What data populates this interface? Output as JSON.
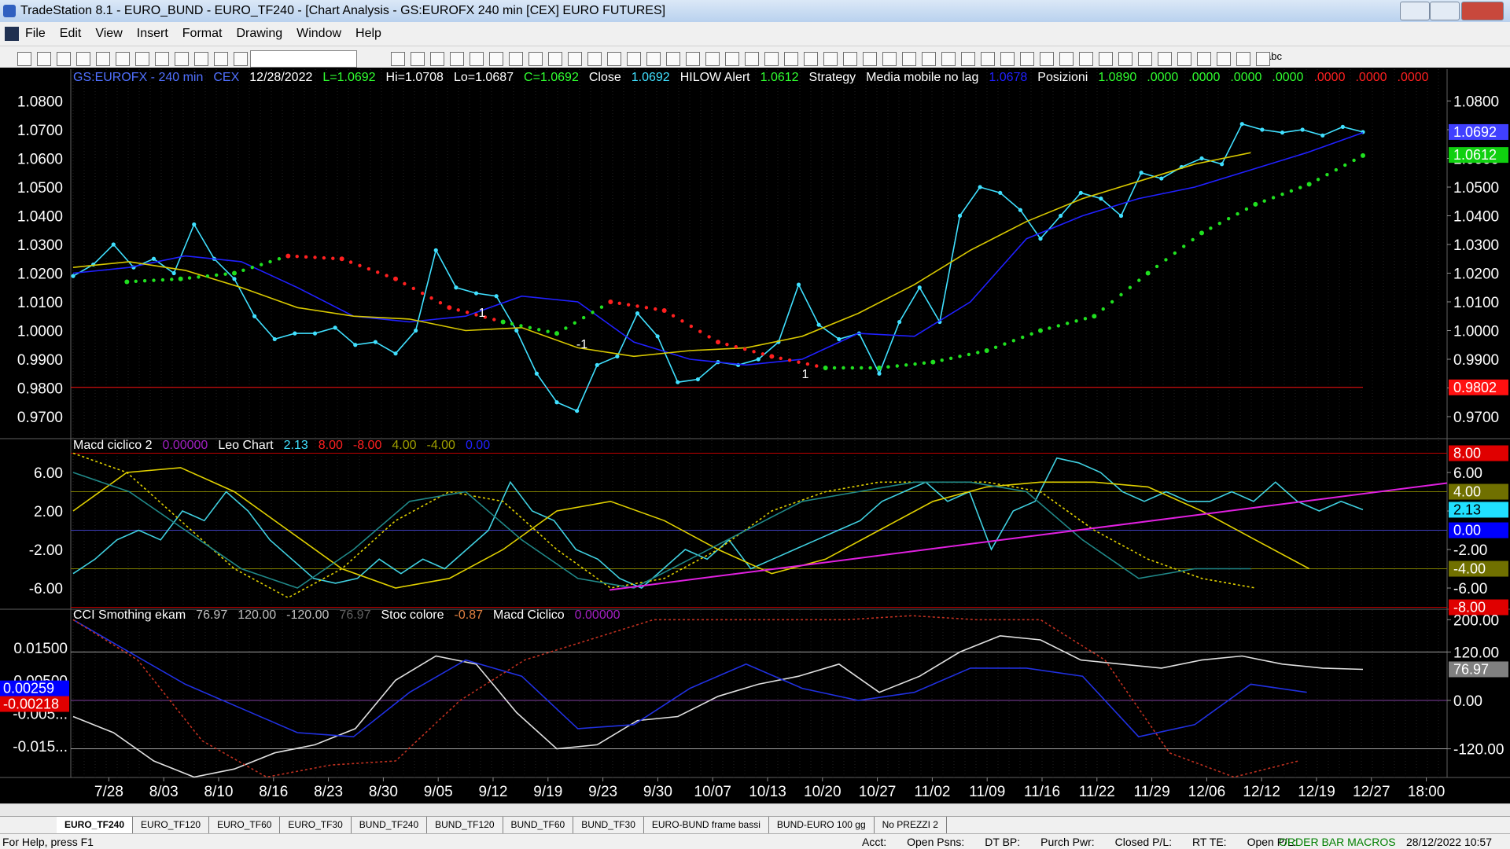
{
  "window": {
    "title": "TradeStation 8.1 - EURO_BUND - EURO_TF240 - [Chart Analysis - GS:EUROFX  240 min  [CEX] EURO FUTURES]"
  },
  "menu": [
    "File",
    "Edit",
    "View",
    "Insert",
    "Format",
    "Drawing",
    "Window",
    "Help"
  ],
  "toolbar": {
    "text_tool": "abc"
  },
  "price_panel": {
    "header": [
      {
        "text": "GS:EUROFX - 240 min",
        "color": "#5070ff"
      },
      {
        "text": "CEX",
        "color": "#5070ff"
      },
      {
        "text": "12/28/2022",
        "color": "#ffffff"
      },
      {
        "text": "L=1.0692",
        "color": "#30ff30"
      },
      {
        "text": "Hi=1.0708",
        "color": "#ffffff"
      },
      {
        "text": "Lo=1.0687",
        "color": "#ffffff"
      },
      {
        "text": "C=1.0692",
        "color": "#30ff30"
      },
      {
        "text": "Close",
        "color": "#ffffff"
      },
      {
        "text": "1.0692",
        "color": "#40e0ff"
      },
      {
        "text": "HILOW Alert",
        "color": "#ffffff"
      },
      {
        "text": "1.0612",
        "color": "#30ff30"
      },
      {
        "text": "Strategy",
        "color": "#ffffff"
      },
      {
        "text": "Media mobile no lag",
        "color": "#ffffff"
      },
      {
        "text": "1.0678",
        "color": "#2020ff"
      },
      {
        "text": "Posizioni",
        "color": "#ffffff"
      },
      {
        "text": "1.0890",
        "color": "#30ff30"
      },
      {
        "text": ".0000",
        "color": "#30ff30"
      },
      {
        "text": ".0000",
        "color": "#30ff30"
      },
      {
        "text": ".0000",
        "color": "#30ff30"
      },
      {
        "text": ".0000",
        "color": "#30ff30"
      },
      {
        "text": ".0000",
        "color": "#ff2020"
      },
      {
        "text": ".0000",
        "color": "#ff2020"
      },
      {
        "text": ".0000",
        "color": "#ff2020"
      }
    ],
    "ylim": [
      0.9626,
      1.0911
    ],
    "yticks": [
      {
        "value": 1.08,
        "label": "1.0800"
      },
      {
        "value": 1.07,
        "label": "1.0700"
      },
      {
        "value": 1.06,
        "label": "1.0600"
      },
      {
        "value": 1.05,
        "label": "1.0500"
      },
      {
        "value": 1.04,
        "label": "1.0400"
      },
      {
        "value": 1.03,
        "label": "1.0300"
      },
      {
        "value": 1.02,
        "label": "1.0200"
      },
      {
        "value": 1.01,
        "label": "1.0100"
      },
      {
        "value": 1.0,
        "label": "1.0000"
      },
      {
        "value": 0.99,
        "label": "0.9900"
      },
      {
        "value": 0.98,
        "label": "0.9800"
      },
      {
        "value": 0.97,
        "label": "0.9700"
      }
    ],
    "series": [
      {
        "name": "Close",
        "color": "#40e0ff",
        "style": "dots",
        "values": [
          1.019,
          1.023,
          1.03,
          1.022,
          1.025,
          1.02,
          1.037,
          1.025,
          1.018,
          1.005,
          0.997,
          0.999,
          0.999,
          1.001,
          0.995,
          0.996,
          0.992,
          1.0,
          1.028,
          1.015,
          1.013,
          1.012,
          1.0,
          0.985,
          0.975,
          0.972,
          0.988,
          0.991,
          1.006,
          0.998,
          0.982,
          0.983,
          0.989,
          0.988,
          0.99,
          0.996,
          1.016,
          1.002,
          0.997,
          0.999,
          0.985,
          1.003,
          1.015,
          1.003,
          1.04,
          1.05,
          1.048,
          1.042,
          1.032,
          1.04,
          1.048,
          1.046,
          1.04,
          1.055,
          1.053,
          1.057,
          1.06,
          1.058,
          1.072,
          1.07,
          1.069,
          1.07,
          1.068,
          1.071,
          1.0692
        ]
      },
      {
        "name": "Media mobile no lag",
        "color": "#2020ff",
        "style": "line",
        "values": [
          1.02,
          1.022,
          1.026,
          1.024,
          1.015,
          1.005,
          1.003,
          1.005,
          1.012,
          1.01,
          0.996,
          0.99,
          0.988,
          0.99,
          0.999,
          0.998,
          1.01,
          1.032,
          1.04,
          1.046,
          1.05,
          1.056,
          1.062,
          1.069
        ]
      },
      {
        "name": "Strategy",
        "color": "#d8c800",
        "style": "line",
        "values": [
          1.022,
          1.024,
          1.021,
          1.015,
          1.008,
          1.005,
          1.004,
          1.0,
          1.001,
          0.994,
          0.991,
          0.993,
          0.994,
          0.998,
          1.006,
          1.016,
          1.028,
          1.038,
          1.046,
          1.052,
          1.058,
          1.062,
          null,
          null
        ]
      },
      {
        "name": "HILOW Alert",
        "color_up": "#20e020",
        "color_down": "#ff2020",
        "style": "hilow",
        "values": [
          null,
          1.017,
          1.018,
          1.02,
          1.026,
          1.025,
          1.018,
          1.008,
          1.003,
          0.999,
          1.01,
          1.007,
          0.996,
          0.991,
          0.987,
          0.987,
          0.989,
          0.993,
          1.0,
          1.005,
          1.02,
          1.034,
          1.044,
          1.051,
          1.061
        ]
      }
    ],
    "level": {
      "value": 0.9802,
      "label": "0.9802",
      "color": "#ff1010"
    },
    "badges": [
      {
        "value": 1.0692,
        "label": "1.0692",
        "color": "#4040ff",
        "text_color": "#ffffff"
      },
      {
        "value": 1.0612,
        "label": "1.0612",
        "color": "#10d010",
        "text_color": "#ffffff"
      }
    ],
    "annotations": [
      "1",
      "-1",
      "1"
    ]
  },
  "macd_panel": {
    "header": [
      {
        "text": "Macd ciclico 2",
        "color": "#ffffff"
      },
      {
        "text": "0.00000",
        "color": "#a020c0"
      },
      {
        "text": "Leo Chart",
        "color": "#ffffff"
      },
      {
        "text": "2.13",
        "color": "#40e0ff"
      },
      {
        "text": "8.00",
        "color": "#ff2020"
      },
      {
        "text": "-8.00",
        "color": "#ff2020"
      },
      {
        "text": "4.00",
        "color": "#a0a000"
      },
      {
        "text": "-4.00",
        "color": "#a0a000"
      },
      {
        "text": "0.00",
        "color": "#2020ff"
      }
    ],
    "ylim": [
      -8.12,
      9.35
    ],
    "yticks": [
      {
        "value": 6,
        "label": "6.00"
      },
      {
        "value": 2,
        "label": "2.00"
      },
      {
        "value": -2,
        "label": "-2.00"
      },
      {
        "value": -6,
        "label": "-6.00"
      }
    ],
    "levels": [
      {
        "value": 8,
        "color": "#c00000"
      },
      {
        "value": 4,
        "color": "#808000"
      },
      {
        "value": 0,
        "color": "#4040c0"
      },
      {
        "value": -4,
        "color": "#808000"
      },
      {
        "value": -8,
        "color": "#c00000"
      }
    ],
    "series": [
      {
        "name": "Leo Chart",
        "color": "#40d0e0",
        "style": "line",
        "values": [
          -4.5,
          -3,
          -1,
          0,
          -1,
          2,
          1,
          4,
          2,
          -1,
          -3,
          -5,
          -5.5,
          -5,
          -3,
          -4.5,
          -3,
          -4,
          -2,
          0,
          5,
          2,
          1,
          -2,
          -3,
          -5,
          -6,
          -4,
          -2,
          -3,
          -1,
          -4,
          -3,
          -2,
          -1,
          0,
          1,
          3,
          4,
          5,
          3,
          4,
          -2,
          2,
          3,
          7.5,
          7,
          6,
          4,
          3,
          4,
          3,
          3,
          4,
          3,
          5,
          3,
          2,
          3,
          2.13
        ]
      },
      {
        "name": "Macd",
        "color": "#e0d000",
        "style": "line",
        "values": [
          2,
          6,
          6.5,
          4,
          0,
          -4,
          -6,
          -5,
          -2,
          2,
          3,
          1,
          -2,
          -4.5,
          -3,
          0,
          3,
          4.5,
          5,
          5,
          4.5,
          2,
          -1,
          -4,
          null
        ]
      },
      {
        "name": "Signal",
        "color": "#e0d000",
        "style": "dashed",
        "values": [
          8,
          6,
          1,
          -4,
          -7,
          -4,
          1,
          4,
          3,
          -2,
          -6,
          -5,
          -2,
          2,
          4,
          5,
          5,
          5,
          4,
          0,
          -3,
          -5,
          -6,
          null,
          null
        ]
      },
      {
        "name": "Ciclo",
        "color": "#208888",
        "style": "line",
        "values": [
          6,
          4,
          0,
          -4,
          -6,
          -2,
          3,
          4,
          -1,
          -5,
          -6,
          -3,
          0,
          3,
          4,
          5,
          5,
          4,
          -1,
          -5,
          -4,
          -4,
          null,
          null
        ]
      },
      {
        "name": "Trend",
        "color": "#e020e0",
        "style": "trend",
        "values": [
          -6.2,
          4.9
        ]
      }
    ],
    "badges": [
      {
        "value": 8,
        "label": "8.00",
        "color": "#e00000",
        "text_color": "#ffffff"
      },
      {
        "value": 4,
        "label": "4.00",
        "color": "#707000",
        "text_color": "#ffffff"
      },
      {
        "value": 2.13,
        "label": "2.13",
        "color": "#20e0ff",
        "text_color": "#000000"
      },
      {
        "value": 0,
        "label": "0.00",
        "color": "#0000ff",
        "text_color": "#ffffff"
      },
      {
        "value": -4,
        "label": "-4.00",
        "color": "#707000",
        "text_color": "#ffffff"
      },
      {
        "value": -8,
        "label": "-8.00",
        "color": "#e00000",
        "text_color": "#ffffff"
      }
    ]
  },
  "cci_panel": {
    "header": [
      {
        "text": "CCI Smothing ekam",
        "color": "#ffffff"
      },
      {
        "text": "76.97",
        "color": "#c0c0c0"
      },
      {
        "text": "120.00",
        "color": "#c0c0c0"
      },
      {
        "text": "-120.00",
        "color": "#c0c0c0"
      },
      {
        "text": "76.97",
        "color": "#606060"
      },
      {
        "text": "Stoc colore",
        "color": "#ffffff"
      },
      {
        "text": "-0.87",
        "color": "#e08040"
      },
      {
        "text": "Macd Ciclico",
        "color": "#ffffff"
      },
      {
        "text": "0.00000",
        "color": "#a020c0"
      }
    ],
    "ylim": [
      -191,
      224
    ],
    "yticks": [
      {
        "value": 200,
        "label": "200.00"
      },
      {
        "value": 120,
        "label": "120.00"
      },
      {
        "value": 0,
        "label": "0.00"
      },
      {
        "value": -120,
        "label": "-120.00"
      }
    ],
    "y2lim": [
      -0.0246,
      0.0265
    ],
    "y2ticks": [
      {
        "value": 0.015,
        "label": "0.01500"
      },
      {
        "value": 0.005,
        "label": "0.00500"
      },
      {
        "value": -0.005,
        "label": "-0.005..."
      },
      {
        "value": -0.015,
        "label": "-0.015..."
      }
    ],
    "levels": [
      {
        "value": 120,
        "color": "#a0a0a0"
      },
      {
        "value": 0,
        "color": "#8040a0"
      },
      {
        "value": -120,
        "color": "#a0a0a0"
      }
    ],
    "series": [
      {
        "name": "CCI Smothing ekam",
        "color": "#e0e0e0",
        "style": "line",
        "values": [
          -40,
          -80,
          -150,
          -190,
          -170,
          -130,
          -110,
          -70,
          50,
          110,
          90,
          -30,
          -120,
          -110,
          -50,
          -40,
          10,
          40,
          60,
          90,
          20,
          60,
          120,
          160,
          150,
          100,
          90,
          80,
          100,
          110,
          90,
          80,
          76.97
        ]
      },
      {
        "name": "Macd Ciclico",
        "color": "#2030e0",
        "style": "line",
        "values": [
          200,
          120,
          40,
          -20,
          -80,
          -90,
          20,
          100,
          60,
          -70,
          -60,
          30,
          90,
          30,
          0,
          20,
          80,
          80,
          60,
          -90,
          -60,
          40,
          20,
          null
        ]
      },
      {
        "name": "Stoc colore",
        "color": "#c03020",
        "style": "dashed",
        "values": [
          200,
          100,
          -100,
          -190,
          -160,
          -150,
          0,
          100,
          150,
          200,
          200,
          200,
          200,
          210,
          200,
          200,
          100,
          -130,
          -190,
          -150,
          null
        ]
      }
    ],
    "badges": [
      {
        "axis": "y2",
        "value": 0.00259,
        "label": "0.00259",
        "color": "#0000ff",
        "text_color": "#ffffff"
      },
      {
        "axis": "y2",
        "value": -0.00218,
        "label": "-0.00218",
        "color": "#e00000",
        "text_color": "#ffffff"
      },
      {
        "value": 76.97,
        "label": "76.97",
        "color": "#808080",
        "text_color": "#ffffff"
      }
    ]
  },
  "x_axis": {
    "labels": [
      "7/28",
      "8/03",
      "8/10",
      "8/16",
      "8/23",
      "8/30",
      "9/05",
      "9/12",
      "9/19",
      "9/23",
      "9/30",
      "10/07",
      "10/13",
      "10/20",
      "10/27",
      "11/02",
      "11/09",
      "11/16",
      "11/22",
      "11/29",
      "12/06",
      "12/12",
      "12/19",
      "12/27",
      "18:00"
    ]
  },
  "tabs": [
    "EURO_TF240",
    "EURO_TF120",
    "EURO_TF60",
    "EURO_TF30",
    "BUND_TF240",
    "BUND_TF120",
    "BUND_TF60",
    "BUND_TF30",
    "EURO-BUND frame bassi",
    "BUND-EURO 100 gg",
    "No PREZZI 2"
  ],
  "status": {
    "help": "For Help, press F1",
    "fields": [
      "Acct:",
      "Open Psns:",
      "DT BP:",
      "Purch Pwr:",
      "Closed P/L:",
      "RT TE:",
      "Open P/L:"
    ],
    "macros": "ORDER BAR  MACROS",
    "datetime": "28/12/2022 10:57"
  }
}
